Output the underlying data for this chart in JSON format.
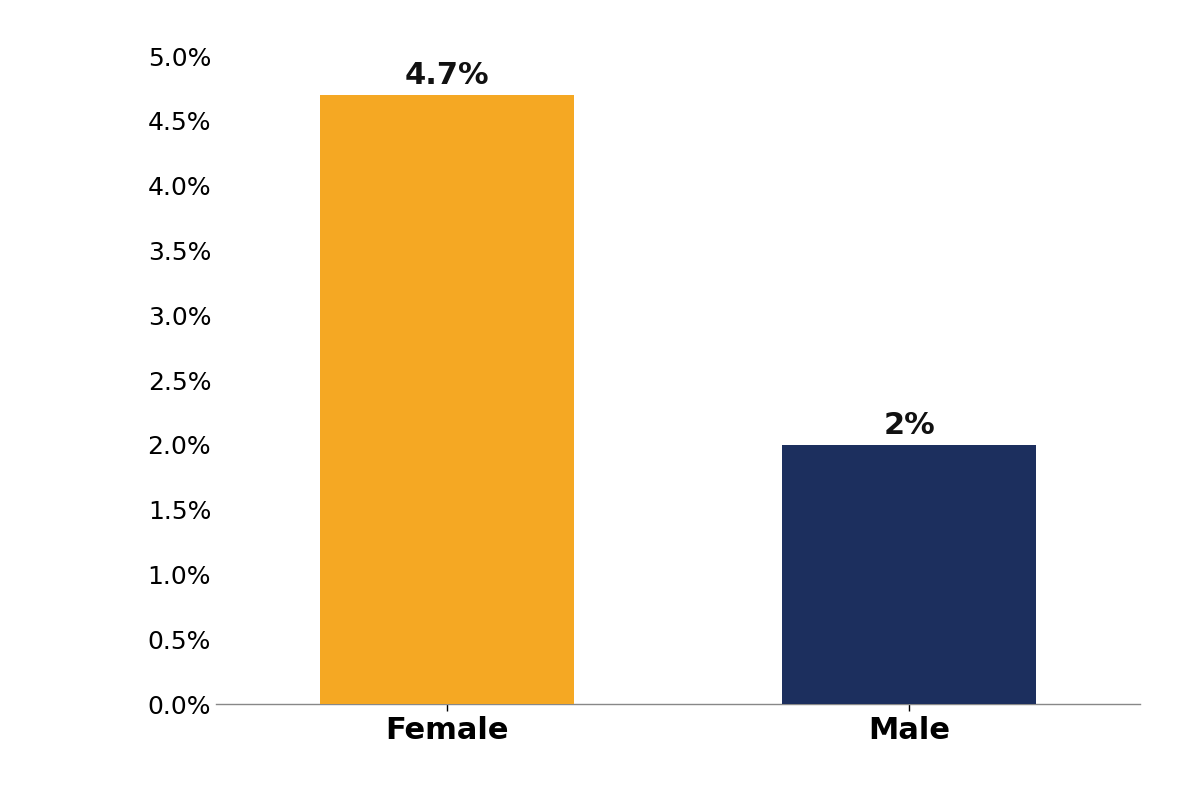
{
  "categories": [
    "Female",
    "Male"
  ],
  "values": [
    0.047,
    0.02
  ],
  "bar_colors": [
    "#F5A823",
    "#1C2F5E"
  ],
  "bar_labels": [
    "4.7%",
    "2%"
  ],
  "ylim": [
    0,
    0.05
  ],
  "yticks": [
    0.0,
    0.005,
    0.01,
    0.015,
    0.02,
    0.025,
    0.03,
    0.035,
    0.04,
    0.045,
    0.05
  ],
  "ytick_labels": [
    "0.0%",
    "0.5%",
    "1.0%",
    "1.5%",
    "2.0%",
    "2.5%",
    "3.0%",
    "3.5%",
    "4.0%",
    "4.5%",
    "5.0%"
  ],
  "x_positions": [
    0.5,
    1.5
  ],
  "xlim": [
    0,
    2.0
  ],
  "label_fontsize": 22,
  "tick_fontsize": 18,
  "bar_label_fontsize": 22,
  "background_color": "#ffffff",
  "bar_width": 0.55
}
